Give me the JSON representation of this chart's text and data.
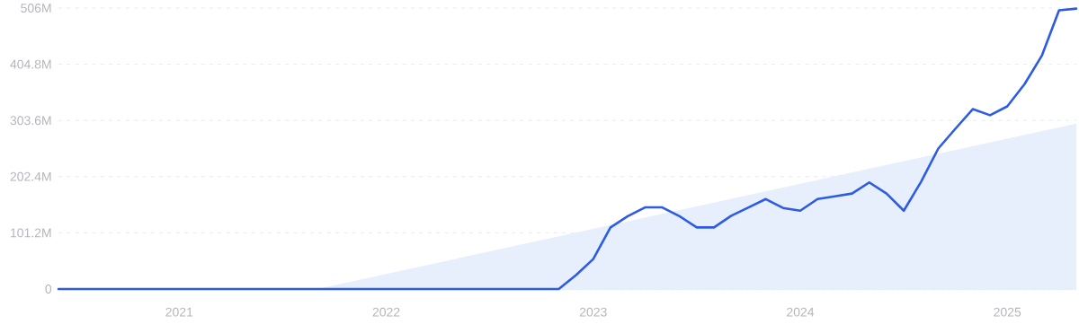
{
  "chart_data": {
    "type": "line",
    "x": [
      "2020-06",
      "2020-07",
      "2020-08",
      "2020-09",
      "2020-10",
      "2020-11",
      "2020-12",
      "2021-01",
      "2021-02",
      "2021-03",
      "2021-04",
      "2021-05",
      "2021-06",
      "2021-07",
      "2021-08",
      "2021-09",
      "2021-10",
      "2021-11",
      "2021-12",
      "2022-01",
      "2022-02",
      "2022-03",
      "2022-04",
      "2022-05",
      "2022-06",
      "2022-07",
      "2022-08",
      "2022-09",
      "2022-10",
      "2022-11",
      "2022-12",
      "2023-01",
      "2023-02",
      "2023-03",
      "2023-04",
      "2023-05",
      "2023-06",
      "2023-07",
      "2023-08",
      "2023-09",
      "2023-10",
      "2023-11",
      "2023-12",
      "2024-01",
      "2024-02",
      "2024-03",
      "2024-04",
      "2024-05",
      "2024-06",
      "2024-07",
      "2024-08",
      "2024-09",
      "2024-10",
      "2024-11",
      "2024-12",
      "2025-01",
      "2025-02",
      "2025-03",
      "2025-04",
      "2025-05"
    ],
    "series": [
      {
        "type": "area",
        "color": "#e6effb",
        "x": [
          "2021-09",
          "2025-05"
        ],
        "values": [
          0,
          298
        ]
      },
      {
        "color": "#2d5be3",
        "values": [
          0,
          0,
          0,
          0,
          0,
          0,
          0,
          0,
          0,
          0,
          0,
          0,
          0,
          0,
          0,
          0,
          0,
          0,
          0,
          0,
          0,
          0,
          0,
          0,
          0,
          0,
          0,
          0,
          0,
          0,
          25,
          54,
          111,
          131,
          147,
          147,
          131,
          111,
          111,
          132,
          147,
          162,
          146,
          141,
          162,
          167,
          172,
          192,
          172,
          141,
          193,
          253,
          289,
          324,
          313,
          329,
          369,
          420,
          502,
          505
        ]
      }
    ],
    "xlim": [
      "2020-06",
      "2025-05"
    ],
    "xticks": [
      {
        "value": "2021-01",
        "label": "2021"
      },
      {
        "value": "2022-01",
        "label": "2022"
      },
      {
        "value": "2023-01",
        "label": "2023"
      },
      {
        "value": "2024-01",
        "label": "2024"
      },
      {
        "value": "2025-01",
        "label": "2025"
      }
    ],
    "ylim": [
      0,
      506
    ],
    "yticks": [
      {
        "value": 0,
        "label": "0"
      },
      {
        "value": 101.2,
        "label": "101.2M"
      },
      {
        "value": 202.4,
        "label": "202.4M"
      },
      {
        "value": 303.6,
        "label": "303.6M"
      },
      {
        "value": 404.8,
        "label": "404.8M"
      },
      {
        "value": 506,
        "label": "506M"
      }
    ],
    "grid": "y"
  }
}
